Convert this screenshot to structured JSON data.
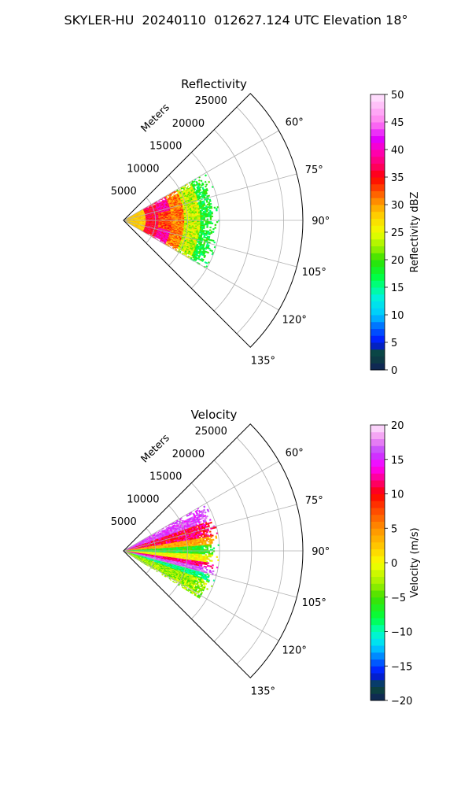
{
  "title": "SKYLER-HU  20240110  012627.124 UTC Elevation 18°",
  "chart_data": [
    {
      "type": "heatmap",
      "projection": "polar-sector",
      "title": "Reflectivity",
      "radial_label": "Meters",
      "radial_ticks": [
        5000,
        10000,
        15000,
        20000,
        25000
      ],
      "radial_tick_labels": [
        "5000",
        "10000",
        "15000",
        "20000",
        "25000"
      ],
      "rlim": [
        0,
        28000
      ],
      "angle_range_deg": [
        45,
        135
      ],
      "angle_ticks": [
        60,
        75,
        90,
        105,
        120,
        135
      ],
      "angle_tick_labels": [
        "60°",
        "75°",
        "90°",
        "105°",
        "120°",
        "135°"
      ],
      "grid": true,
      "colorbar": {
        "label": "Reflectivity dBZ",
        "range": [
          0,
          50
        ],
        "ticks": [
          0,
          5,
          10,
          15,
          20,
          25,
          30,
          35,
          40,
          45,
          50
        ],
        "tick_labels": [
          "0",
          "5",
          "10",
          "15",
          "20",
          "25",
          "30",
          "35",
          "40",
          "45",
          "50"
        ],
        "stops": [
          [
            0,
            "#10205a"
          ],
          [
            3,
            "#0b4a3a"
          ],
          [
            5,
            "#0010ff"
          ],
          [
            8,
            "#0070ff"
          ],
          [
            10,
            "#00c8ff"
          ],
          [
            13,
            "#00f0e0"
          ],
          [
            15,
            "#00ff90"
          ],
          [
            17,
            "#00ff40"
          ],
          [
            20,
            "#30e000"
          ],
          [
            22,
            "#90f000"
          ],
          [
            25,
            "#f0ff00"
          ],
          [
            28,
            "#ffd000"
          ],
          [
            30,
            "#ffa000"
          ],
          [
            32,
            "#ff6000"
          ],
          [
            35,
            "#ff0000"
          ],
          [
            37,
            "#ff0060"
          ],
          [
            40,
            "#ff00c0"
          ],
          [
            42,
            "#e000ff"
          ],
          [
            45,
            "#ff80f0"
          ],
          [
            50,
            "#ffe8ff"
          ]
        ]
      },
      "data_summary": {
        "max_range_m": 15000,
        "angle_extent_deg": [
          60,
          120
        ],
        "values": [
          {
            "range_m": [
              0,
              4000
            ],
            "angle_deg": [
              65,
              118
            ],
            "value": 27
          },
          {
            "range_m": [
              4000,
              9000
            ],
            "angle_deg": [
              62,
              122
            ],
            "value": 36
          },
          {
            "range_m": [
              9000,
              15000
            ],
            "angle_deg": [
              60,
              120
            ],
            "value": 17
          }
        ]
      }
    },
    {
      "type": "heatmap",
      "projection": "polar-sector",
      "title": "Velocity",
      "radial_label": "Meters",
      "radial_ticks": [
        5000,
        10000,
        15000,
        20000,
        25000
      ],
      "radial_tick_labels": [
        "5000",
        "10000",
        "15000",
        "20000",
        "25000"
      ],
      "rlim": [
        0,
        28000
      ],
      "angle_range_deg": [
        45,
        135
      ],
      "angle_ticks": [
        60,
        75,
        90,
        105,
        120,
        135
      ],
      "angle_tick_labels": [
        "60°",
        "75°",
        "90°",
        "105°",
        "120°",
        "135°"
      ],
      "grid": true,
      "colorbar": {
        "label": "Velocity (m/s)",
        "range": [
          -20,
          20
        ],
        "ticks": [
          -20,
          -15,
          -10,
          -5,
          0,
          5,
          10,
          15,
          20
        ],
        "tick_labels": [
          "−20",
          "−15",
          "−10",
          "−5",
          "0",
          "5",
          "10",
          "15",
          "20"
        ],
        "stops": [
          [
            -20,
            "#10205a"
          ],
          [
            -18,
            "#0b4a3a"
          ],
          [
            -16,
            "#0010ff"
          ],
          [
            -14,
            "#0070ff"
          ],
          [
            -12,
            "#00d8ff"
          ],
          [
            -10,
            "#00ffc0"
          ],
          [
            -8,
            "#00ff40"
          ],
          [
            -5,
            "#40e000"
          ],
          [
            -3,
            "#a0f000"
          ],
          [
            0,
            "#f8ff00"
          ],
          [
            2,
            "#ffd000"
          ],
          [
            5,
            "#ff9000"
          ],
          [
            8,
            "#ff4000"
          ],
          [
            10,
            "#ff0000"
          ],
          [
            12,
            "#ff0080"
          ],
          [
            14,
            "#ff00ff"
          ],
          [
            16,
            "#c040ff"
          ],
          [
            18,
            "#f090f0"
          ],
          [
            20,
            "#ffe8ff"
          ]
        ]
      },
      "data_summary": {
        "max_range_m": 15000,
        "angle_extent_deg": [
          60,
          122
        ],
        "values": [
          {
            "range_m": [
              0,
              15000
            ],
            "angle_deg": [
              60,
              80
            ],
            "value": 12
          },
          {
            "range_m": [
              0,
              15000
            ],
            "angle_deg": [
              80,
              95
            ],
            "value": 0
          },
          {
            "range_m": [
              0,
              15000
            ],
            "angle_deg": [
              95,
              108
            ],
            "value": 13
          },
          {
            "range_m": [
              0,
              15000
            ],
            "angle_deg": [
              108,
              122
            ],
            "value": -8
          }
        ]
      }
    }
  ]
}
